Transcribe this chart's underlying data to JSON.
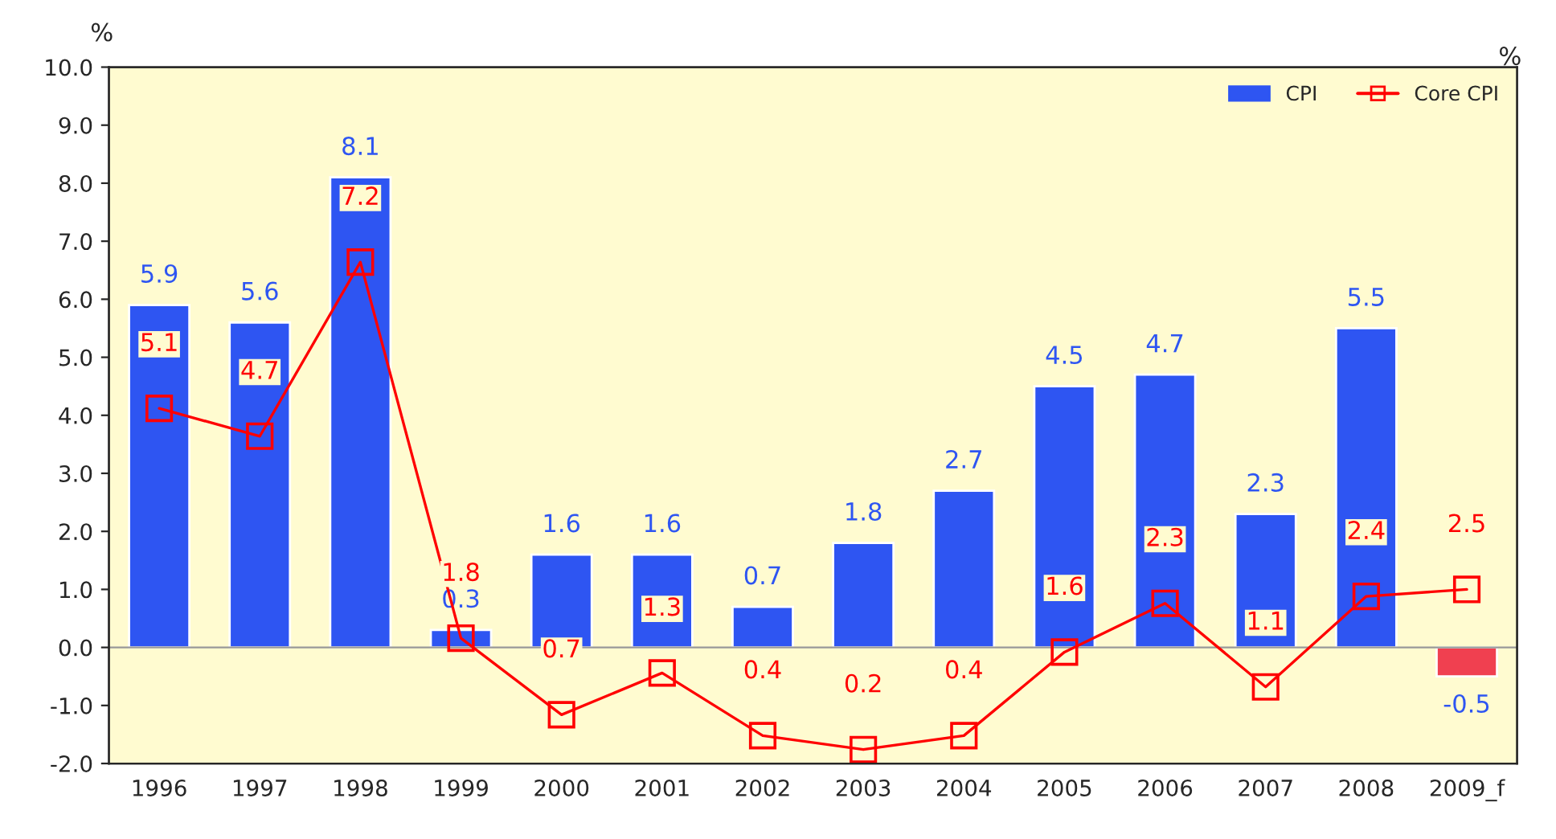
{
  "chart_data": {
    "type": "bar",
    "ylabel": "%",
    "y2label": "%",
    "categories": [
      "1996",
      "1997",
      "1998",
      "1999",
      "2000",
      "2001",
      "2002",
      "2003",
      "2004",
      "2005",
      "2006",
      "2007",
      "2008",
      "2009_f"
    ],
    "series": [
      {
        "name": "CPI",
        "color": "#2e55f2",
        "colors": [
          "#2e55f2",
          "#2e55f2",
          "#2e55f2",
          "#2e55f2",
          "#2e55f2",
          "#2e55f2",
          "#2e55f2",
          "#2e55f2",
          "#2e55f2",
          "#2e55f2",
          "#2e55f2",
          "#2e55f2",
          "#2e55f2",
          "#f04050"
        ],
        "values": [
          5.9,
          5.6,
          8.1,
          0.3,
          1.6,
          1.6,
          0.7,
          1.8,
          2.7,
          4.5,
          4.7,
          2.3,
          5.5,
          -0.5
        ]
      },
      {
        "name": "Core CPI",
        "type": "line",
        "axis": "y2",
        "color": "#ff0000",
        "values": [
          5.1,
          4.7,
          7.2,
          1.8,
          0.7,
          1.3,
          0.4,
          0.2,
          0.4,
          1.6,
          2.3,
          1.1,
          2.4,
          2.5
        ]
      }
    ],
    "ylim": [
      -2,
      10
    ],
    "yticks": [
      {
        "value": -2,
        "label": "-2.0"
      },
      {
        "value": -1,
        "label": "-1.0"
      },
      {
        "value": 0,
        "label": "0.0"
      },
      {
        "value": 1,
        "label": "1.0"
      },
      {
        "value": 2,
        "label": "2.0"
      },
      {
        "value": 3,
        "label": "3.0"
      },
      {
        "value": 4,
        "label": "4.0"
      },
      {
        "value": 5,
        "label": "5.0"
      },
      {
        "value": 6,
        "label": "6.0"
      },
      {
        "value": 7,
        "label": "7.0"
      },
      {
        "value": 8,
        "label": "8.0"
      },
      {
        "value": 9,
        "label": "9.0"
      },
      {
        "value": 10,
        "label": "10.0"
      }
    ],
    "y2lim": [
      0,
      10
    ],
    "data_labels": true,
    "marker": "square",
    "line_style": "solid",
    "legend": "top right"
  }
}
